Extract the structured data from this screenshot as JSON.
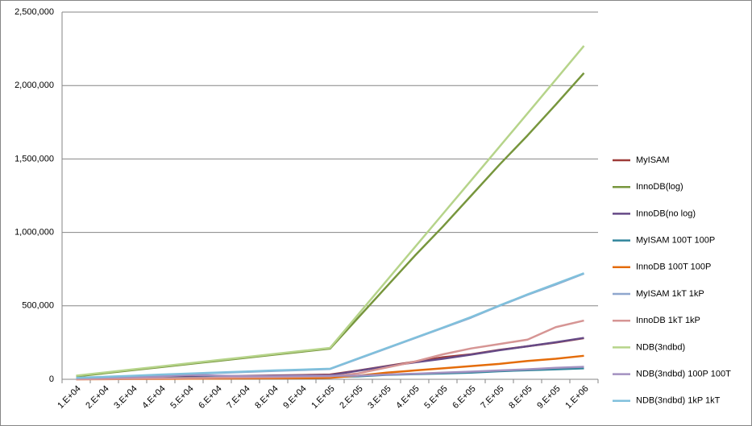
{
  "chart_data": {
    "type": "line",
    "categories": [
      "1.E+04",
      "2.E+04",
      "3.E+04",
      "4.E+04",
      "5.E+04",
      "6.E+04",
      "7.E+04",
      "8.E+04",
      "9.E+04",
      "1.E+05",
      "2.E+05",
      "3.E+05",
      "4.E+05",
      "5.E+05",
      "6.E+05",
      "7.E+05",
      "8.E+05",
      "9.E+05",
      "1.E+06"
    ],
    "ylim": [
      0,
      2500000
    ],
    "yticks": [
      0,
      {
        "value": 500000,
        "label": "500,000"
      },
      {
        "value": 1000000,
        "label": "1,000,000"
      },
      {
        "value": 1500000,
        "label": "1,500,000"
      },
      {
        "value": 2000000,
        "label": "2,000,000"
      },
      {
        "value": 2500000,
        "label": "2,500,000"
      }
    ],
    "grid": true,
    "legend": "right",
    "series": [
      {
        "name": "MyISAM",
        "color": "#9e3b38",
        "values": [
          5000,
          8000,
          11000,
          14000,
          17000,
          20000,
          23000,
          26000,
          29000,
          32000,
          60000,
          90000,
          120000,
          150000,
          170000,
          200000,
          225000,
          250000,
          280000
        ]
      },
      {
        "name": "InnoDB(log)",
        "color": "#77963d",
        "values": [
          20000,
          41000,
          62000,
          83000,
          104000,
          125000,
          146000,
          167000,
          188000,
          209000,
          420000,
          630000,
          840000,
          1040000,
          1250000,
          1460000,
          1660000,
          1870000,
          2085000
        ]
      },
      {
        "name": "InnoDB(no log)",
        "color": "#664a86",
        "values": [
          3000,
          6000,
          9000,
          12000,
          15000,
          18000,
          21000,
          24000,
          26000,
          28000,
          58000,
          88000,
          115000,
          140000,
          168000,
          198000,
          225000,
          252000,
          282000
        ]
      },
      {
        "name": "MyISAM 100T 100P",
        "color": "#31859c",
        "values": [
          2000,
          4000,
          6000,
          8000,
          10000,
          12000,
          14000,
          15000,
          16000,
          17000,
          20000,
          30000,
          35000,
          40000,
          45000,
          55000,
          62000,
          68000,
          75000
        ]
      },
      {
        "name": "InnoDB 100T 100P",
        "color": "#e46c0a",
        "values": [
          0,
          1000,
          2000,
          3000,
          4000,
          5000,
          6000,
          7000,
          8000,
          10000,
          25000,
          45000,
          60000,
          75000,
          90000,
          105000,
          125000,
          140000,
          160000
        ]
      },
      {
        "name": "MyISAM 1kT 1kP",
        "color": "#8ea6cd",
        "values": [
          8000,
          15000,
          22000,
          29000,
          36000,
          43000,
          50000,
          57000,
          63000,
          70000,
          140000,
          210000,
          280000,
          350000,
          420000,
          500000,
          575000,
          645000,
          720000
        ]
      },
      {
        "name": "InnoDB 1kT 1kP",
        "color": "#d69594",
        "values": [
          0,
          2000,
          4000,
          6000,
          8000,
          10000,
          12000,
          14000,
          17000,
          20000,
          40000,
          80000,
          120000,
          170000,
          210000,
          240000,
          270000,
          355000,
          400000
        ]
      },
      {
        "name": "NDB(3ndbd)",
        "color": "#b6d48a",
        "values": [
          25000,
          46000,
          67000,
          88000,
          109000,
          130000,
          151000,
          172000,
          193000,
          214000,
          442000,
          670000,
          898000,
          1126000,
          1354000,
          1582000,
          1810000,
          2040000,
          2270000
        ]
      },
      {
        "name": "NDB(3ndbd) 100P 100T",
        "color": "#a391c0",
        "values": [
          8000,
          12000,
          16000,
          20000,
          30000,
          25000,
          22000,
          22000,
          23000,
          24000,
          25000,
          32000,
          38000,
          45000,
          52000,
          60000,
          68000,
          78000,
          85000
        ]
      },
      {
        "name": "NDB(3ndbd) 1kP 1kT",
        "color": "#80c0dc",
        "values": [
          10000,
          17000,
          24000,
          32000,
          39000,
          46000,
          53000,
          60000,
          66000,
          72000,
          142000,
          212000,
          282000,
          352000,
          424000,
          502000,
          578000,
          650000,
          722000
        ]
      }
    ]
  }
}
